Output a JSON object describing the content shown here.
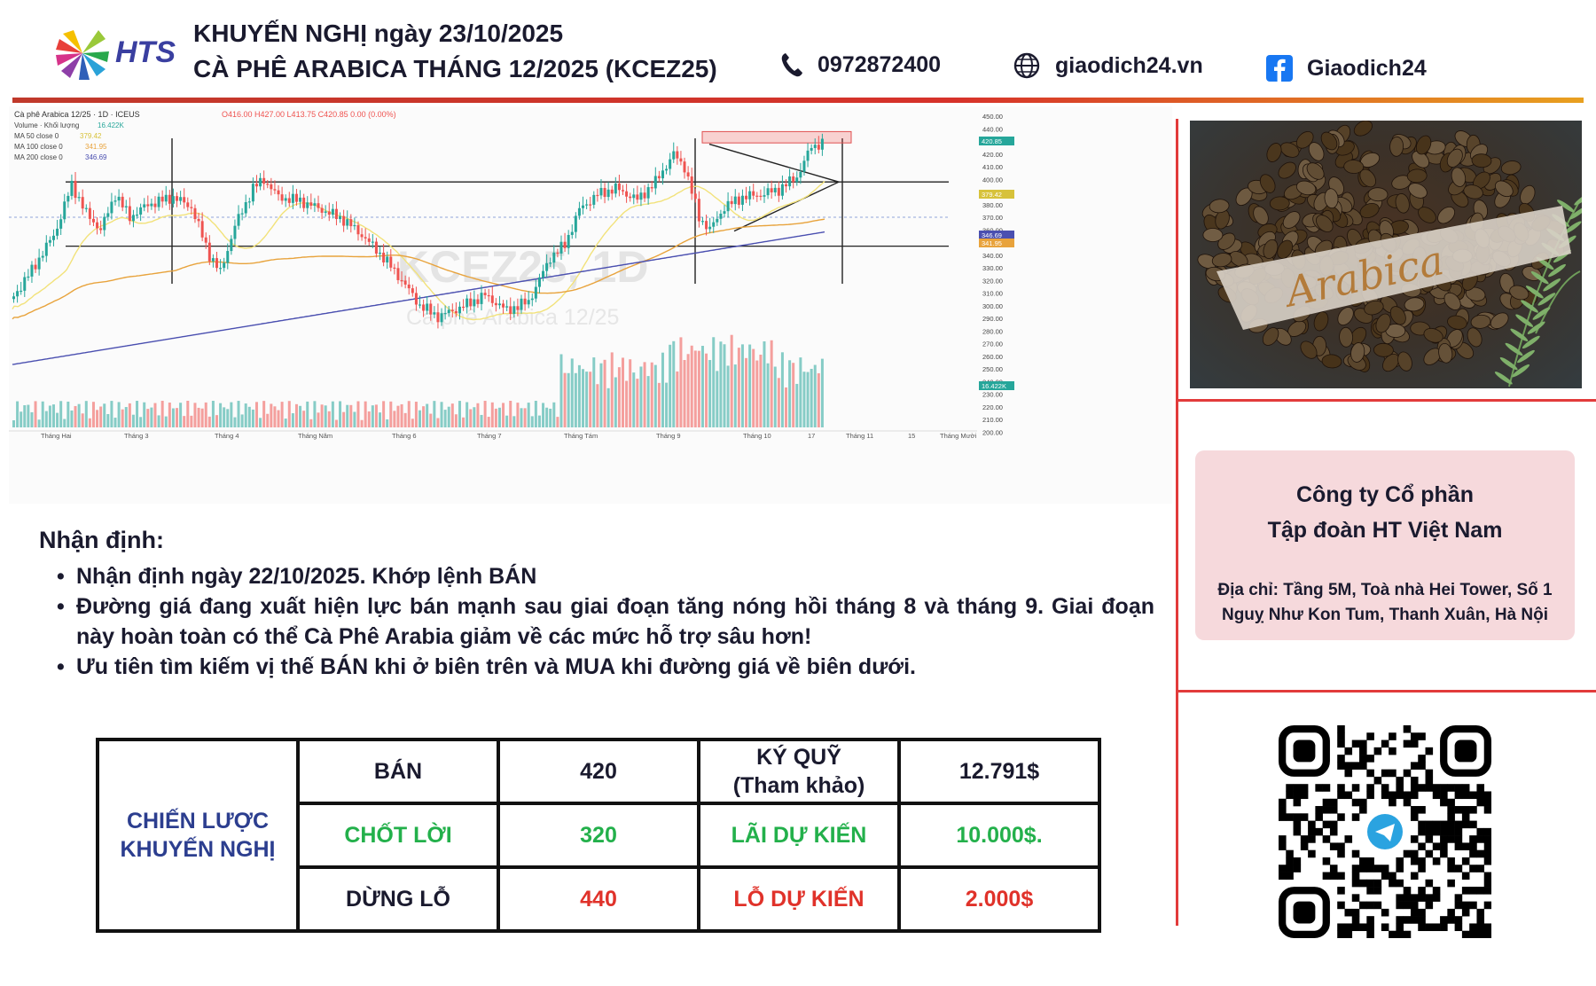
{
  "header": {
    "logo_text": "HTS",
    "title_line1": "KHUYẾN NGHỊ ngày 23/10/2025",
    "title_line2": "CÀ PHÊ ARABICA THÁNG 12/2025 (KCEZ25)",
    "phone": "0972872400",
    "website": "giaodich24.vn",
    "facebook": "Giaodich24",
    "icons": [
      "phone-icon",
      "globe-icon",
      "facebook-icon"
    ]
  },
  "chart": {
    "legend_line1": "Cà phê Arabica 12/25 · 1D · ICEUS",
    "ohlc": "O416.00 H427.00 L413.75 C420.85 0.00 (0.00%)",
    "volume_label": "Volume · Khối lượng",
    "volume_value": "16.422K",
    "ma50": "MA 50 close 0",
    "ma50_value": "379.42",
    "ma100": "MA 100 close 0",
    "ma100_value": "341.95",
    "ma200": "MA 200 close 0",
    "ma200_value": "346.69",
    "watermark1": "KCEZ25, 1D",
    "watermark2": "Cà phê Arabica 12/25",
    "months": [
      "Tháng Hai",
      "Tháng 3",
      "Tháng 4",
      "Tháng Năm",
      "Tháng 6",
      "Tháng 7",
      "Tháng Tám",
      "Tháng 9",
      "Tháng 10",
      "17",
      "Tháng 11",
      "15",
      "Tháng Mười"
    ],
    "price_ticks": [
      "450.00",
      "440.00",
      "430.00",
      "420.00",
      "410.00",
      "400.00",
      "390.00",
      "380.00",
      "370.00",
      "360.00",
      "350.00",
      "340.00",
      "330.00",
      "320.00",
      "310.00",
      "300.00",
      "290.00",
      "280.00",
      "270.00",
      "260.00",
      "250.00",
      "240.00",
      "230.00",
      "220.00",
      "210.00",
      "200.00"
    ],
    "last_price_tag": "420.85",
    "ma50_tag": "379.42",
    "ma200_tag": "346.69",
    "ma100_tag": "341.95",
    "volume_tag": "16.422K",
    "colors": {
      "up": "#26a69a",
      "down": "#ef5350",
      "ma50": "#f2e27a",
      "ma100": "#e8a33c",
      "ma200": "#4a4fb0"
    }
  },
  "photo": {
    "label": "Arabica"
  },
  "company": {
    "name_line1": "Công ty Cổ phần",
    "name_line2": "Tập đoàn HT Việt Nam",
    "address": "Địa chỉ: Tầng 5M, Toà nhà Hei Tower, Số 1 Nguỵ Như Kon Tum, Thanh Xuân, Hà Nội"
  },
  "analysis": {
    "title": "Nhận định:",
    "points": [
      "Nhận định ngày 22/10/2025. Khớp lệnh BÁN",
      "Đường giá đang xuất hiện lực bán mạnh sau giai đoạn tăng nóng hồi tháng 8 và tháng 9. Giai đoạn này hoàn toàn có thể Cà Phê Arabia giảm về các mức hỗ trợ sâu hơn!",
      "Ưu tiên tìm kiếm vị thế BÁN khi ở biên trên và MUA khi đường giá về biên dưới."
    ]
  },
  "strategy": {
    "label": "CHIẾN LƯỢC KHUYẾN NGHỊ",
    "rows": [
      {
        "action": "BÁN",
        "price": "420",
        "metric": "KÝ QUỸ (Tham khảo)",
        "amount": "12.791$"
      },
      {
        "action": "CHỐT LỜI",
        "price": "320",
        "metric": "LÃI DỰ KIẾN",
        "amount": "10.000$."
      },
      {
        "action": "DỪNG LỖ",
        "price": "440",
        "metric": "LỖ DỰ KIẾN",
        "amount": "2.000$"
      }
    ]
  }
}
